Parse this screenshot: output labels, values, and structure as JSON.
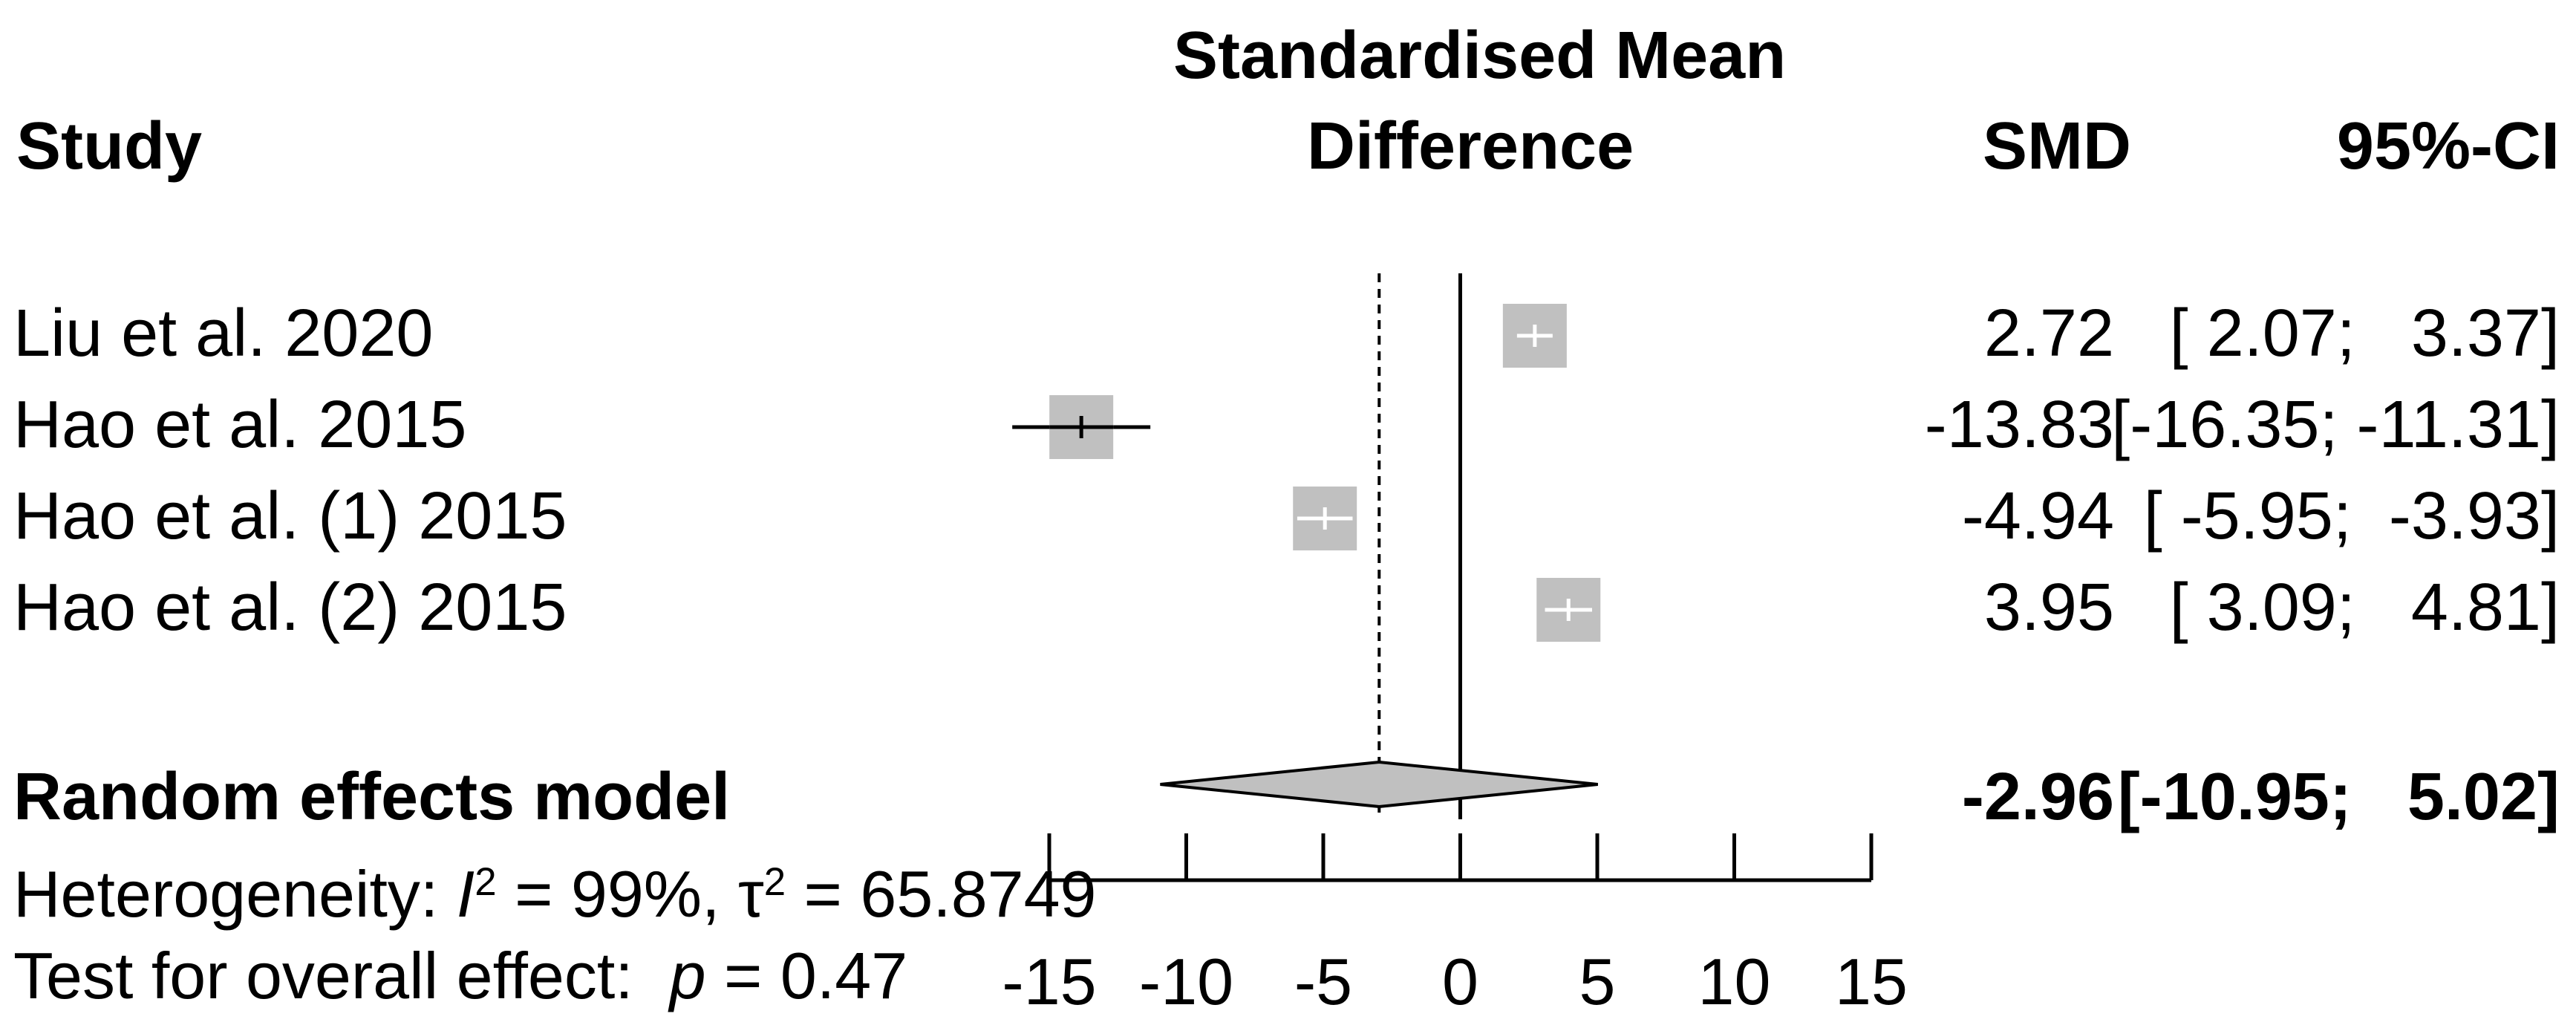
{
  "headers": {
    "study": "Study",
    "effect_line1": "Standardised Mean",
    "effect_line2": "Difference",
    "smd": "SMD",
    "ci": "95%-CI"
  },
  "studies": [
    {
      "name": "Liu et al. 2020",
      "smd_text": "2.72",
      "ci_text": "[ 2.07;   3.37]"
    },
    {
      "name": "Hao et al. 2015",
      "smd_text": "-13.83",
      "ci_text": "[-16.35; -11.31]"
    },
    {
      "name": "Hao et al. (1) 2015",
      "smd_text": "-4.94",
      "ci_text": "[ -5.95;  -3.93]"
    },
    {
      "name": "Hao et al. (2) 2015",
      "smd_text": "3.95",
      "ci_text": "[ 3.09;   4.81]"
    }
  ],
  "summary": {
    "name": "Random effects model",
    "smd_text": "-2.96",
    "ci_text": "[-10.95;   5.02]"
  },
  "heterogeneity": {
    "prefix": "Heterogeneity: ",
    "i2_symbol": "I",
    "i2_sup": "2",
    "i2_value": " = 99%, ",
    "tau_symbol": "τ",
    "tau_sup": "2",
    "tau_value": " = 65.8749"
  },
  "overall_test": {
    "prefix": "Test for overall effect:  ",
    "p_symbol": "p",
    "p_value": " = 0.47"
  },
  "chart_data": {
    "type": "forest",
    "title": "Standardised Mean Difference",
    "xlabel": "",
    "xlim": [
      -15,
      15
    ],
    "xticks": [
      -15,
      -10,
      -5,
      0,
      5,
      10,
      15
    ],
    "tick_labels": [
      "-15",
      "-10",
      "-5",
      "0",
      "5",
      "10",
      "15"
    ],
    "null_line": 0,
    "studies": [
      {
        "name": "Liu et al. 2020",
        "smd": 2.72,
        "lower": 2.07,
        "upper": 3.37,
        "weight": 0.25
      },
      {
        "name": "Hao et al. 2015",
        "smd": -13.83,
        "lower": -16.35,
        "upper": -11.31,
        "weight": 0.25
      },
      {
        "name": "Hao et al. (1) 2015",
        "smd": -4.94,
        "lower": -5.95,
        "upper": -3.93,
        "weight": 0.25
      },
      {
        "name": "Hao et al. (2) 2015",
        "smd": 3.95,
        "lower": 3.09,
        "upper": 4.81,
        "weight": 0.25
      }
    ],
    "pooled": {
      "name": "Random effects model",
      "smd": -2.96,
      "lower": -10.95,
      "upper": 5.02
    },
    "colors": {
      "box": "#c0c0c0",
      "line_on_box": "#ffffff",
      "line": "#000000",
      "diamond": "#c0c0c0"
    }
  }
}
